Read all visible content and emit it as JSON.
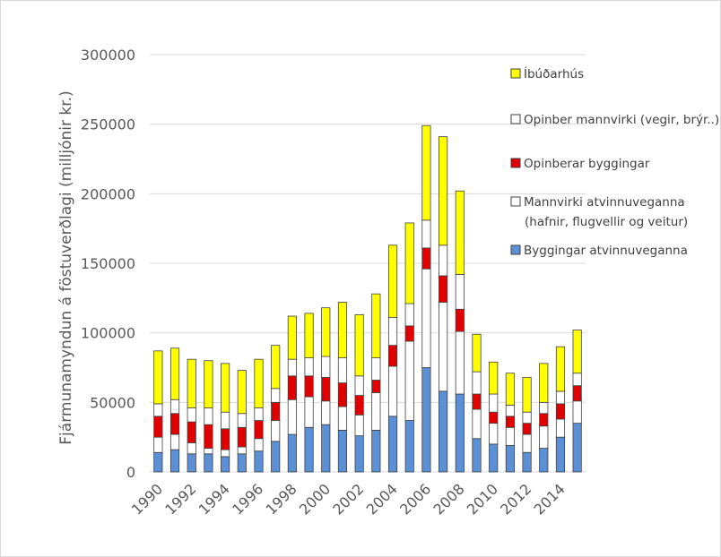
{
  "chart_data": {
    "type": "bar",
    "stacked": true,
    "title": "",
    "xlabel": "",
    "ylabel": "Fjármunamyndun á föstuverðlagi (milljónir kr.)",
    "ylim": [
      0,
      300000
    ],
    "yticks": [
      0,
      50000,
      100000,
      150000,
      200000,
      250000,
      300000
    ],
    "grid": true,
    "legend_position": "right",
    "categories": [
      "1990",
      "1991",
      "1992",
      "1993",
      "1994",
      "1995",
      "1996",
      "1997",
      "1998",
      "1999",
      "2000",
      "2001",
      "2002",
      "2003",
      "2004",
      "2005",
      "2006",
      "2007",
      "2008",
      "2009",
      "2010",
      "2011",
      "2012",
      "2013",
      "2014",
      "2015"
    ],
    "x_tick_labels": [
      "1990",
      "1992",
      "1994",
      "1996",
      "1998",
      "2000",
      "2002",
      "2004",
      "2006",
      "2008",
      "2010",
      "2012",
      "2014"
    ],
    "series": [
      {
        "name": "Byggingar atvinnuveganna",
        "color": "#5b8fd6",
        "values": [
          14000,
          16000,
          13000,
          13000,
          11000,
          13000,
          15000,
          22000,
          27000,
          32000,
          34000,
          30000,
          26000,
          30000,
          40000,
          37000,
          75000,
          58000,
          56000,
          24000,
          20000,
          19000,
          14000,
          17000,
          25000,
          35000
        ]
      },
      {
        "name": "Mannvirki atvinnuveganna (hafnir, flugvellir og veitur)",
        "color": "#ffffff",
        "values": [
          11000,
          11000,
          8000,
          4000,
          5000,
          5000,
          9000,
          15000,
          25000,
          22000,
          17000,
          17000,
          15000,
          27000,
          36000,
          57000,
          71000,
          64000,
          45000,
          21000,
          15000,
          13000,
          13000,
          16000,
          13000,
          16000
        ]
      },
      {
        "name": "Opinberar byggingar",
        "color": "#e00000",
        "values": [
          15000,
          15000,
          15000,
          17000,
          15000,
          14000,
          13000,
          13000,
          17000,
          15000,
          17000,
          17000,
          14000,
          9000,
          15000,
          11000,
          15000,
          19000,
          16000,
          11000,
          8000,
          8000,
          8000,
          9000,
          11000,
          11000
        ]
      },
      {
        "name": "Opinber mannvirki (vegir, brýr..)",
        "color": "#ffffff",
        "values": [
          9000,
          10000,
          10000,
          12000,
          12000,
          10000,
          9000,
          10000,
          12000,
          13000,
          15000,
          18000,
          14000,
          16000,
          20000,
          16000,
          20000,
          22000,
          25000,
          16000,
          13000,
          8000,
          8000,
          8000,
          9000,
          9000
        ]
      },
      {
        "name": "Íbúðarhús",
        "color": "#ffff00",
        "values": [
          38000,
          37000,
          35000,
          34000,
          35000,
          31000,
          35000,
          31000,
          31000,
          32000,
          35000,
          40000,
          44000,
          46000,
          52000,
          58000,
          68000,
          78000,
          60000,
          27000,
          23000,
          23000,
          25000,
          28000,
          32000,
          31000
        ]
      }
    ],
    "legend_order": [
      "Íbúðarhús",
      "Opinber mannvirki (vegir, brýr..)",
      "Opinberar byggingar",
      "Mannvirki atvinnuveganna (hafnir, flugvellir og veitur)",
      "Byggingar atvinnuveganna"
    ],
    "legend_display": [
      [
        "Íbúðarhús"
      ],
      [
        "Opinber mannvirki (vegir, brýr..)"
      ],
      [
        "Opinberar byggingar"
      ],
      [
        "Mannvirki atvinnuveganna",
        "(hafnir, flugvellir og veitur)"
      ],
      [
        "Byggingar atvinnuveganna"
      ]
    ]
  }
}
